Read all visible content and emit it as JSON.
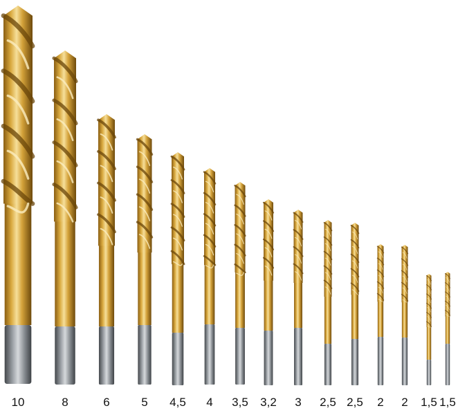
{
  "colors": {
    "background": "#ffffff",
    "gold_light": "#f2d58a",
    "gold_mid": "#c9962e",
    "gold_dark": "#7a5410",
    "shank_light": "#c8ccd0",
    "shank_mid": "#8a8f94",
    "shank_dark": "#4a4e52",
    "label_text": "#111111"
  },
  "bits": [
    {
      "size_label": "10"
    },
    {
      "size_label": "8"
    },
    {
      "size_label": "6"
    },
    {
      "size_label": "5"
    },
    {
      "size_label": "4,5"
    },
    {
      "size_label": "4"
    },
    {
      "size_label": "3,5"
    },
    {
      "size_label": "3,2"
    },
    {
      "size_label": "3"
    },
    {
      "size_label": "2,5"
    },
    {
      "size_label": "2,5"
    },
    {
      "size_label": "2"
    },
    {
      "size_label": "2"
    },
    {
      "size_label": "1,5"
    },
    {
      "size_label": "1,5"
    }
  ]
}
